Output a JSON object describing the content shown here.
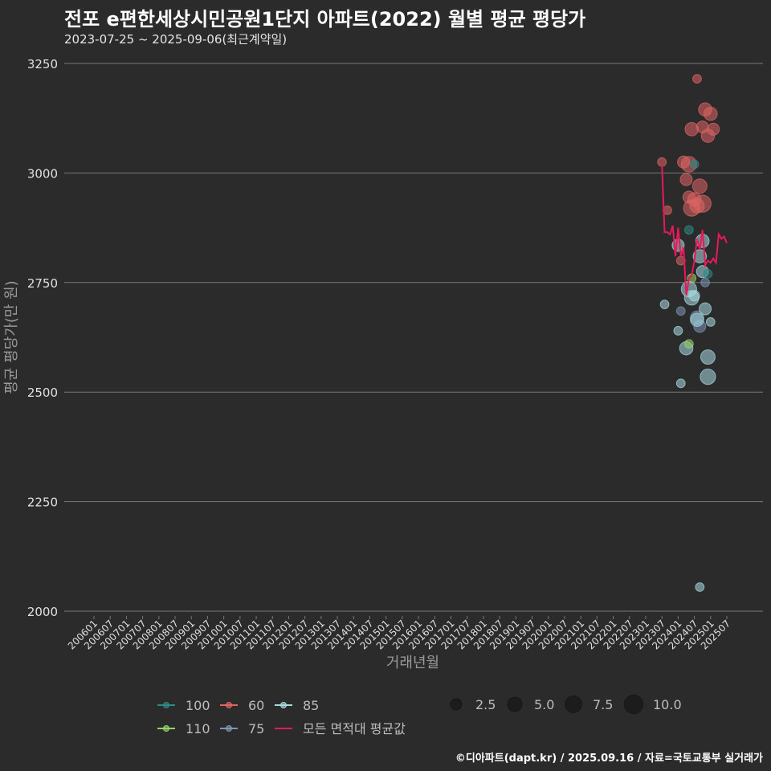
{
  "chart_data": {
    "type": "scatter",
    "title": "전포 e편한세상시민공원1단지 아파트(2022) 월별 평균 평당가",
    "subtitle": "2023-07-25 ~ 2025-09-06(최근계약일)",
    "xlabel": "거래년월",
    "ylabel": "평균 평당가(만 원)",
    "ylim": [
      2000,
      3250
    ],
    "yticks": [
      2000,
      2250,
      2500,
      2750,
      3000,
      3250
    ],
    "xticks": [
      "200601",
      "200607",
      "200701",
      "200707",
      "200801",
      "200807",
      "200901",
      "200907",
      "201001",
      "201007",
      "201101",
      "201107",
      "201201",
      "201207",
      "201301",
      "201307",
      "201401",
      "201407",
      "201501",
      "201507",
      "201601",
      "201607",
      "201701",
      "201707",
      "201801",
      "201807",
      "201901",
      "201907",
      "202001",
      "202007",
      "202101",
      "202107",
      "202201",
      "202207",
      "202301",
      "202307",
      "202401",
      "202407",
      "202501",
      "202507"
    ],
    "series": [
      {
        "name": "60",
        "color": "#e06565",
        "points": [
          {
            "x": "202307",
            "y": 3025,
            "n": 1
          },
          {
            "x": "202309",
            "y": 2915,
            "n": 1
          },
          {
            "x": "202402",
            "y": 2800,
            "n": 1
          },
          {
            "x": "202403",
            "y": 3025,
            "n": 3
          },
          {
            "x": "202404",
            "y": 2985,
            "n": 3
          },
          {
            "x": "202405",
            "y": 3020,
            "n": 6
          },
          {
            "x": "202405",
            "y": 2945,
            "n": 3
          },
          {
            "x": "202406",
            "y": 3100,
            "n": 4
          },
          {
            "x": "202406",
            "y": 2920,
            "n": 7
          },
          {
            "x": "202407",
            "y": 2940,
            "n": 4
          },
          {
            "x": "202408",
            "y": 3215,
            "n": 1
          },
          {
            "x": "202408",
            "y": 2925,
            "n": 5
          },
          {
            "x": "202409",
            "y": 2970,
            "n": 5
          },
          {
            "x": "202410",
            "y": 2930,
            "n": 8
          },
          {
            "x": "202410",
            "y": 3105,
            "n": 3
          },
          {
            "x": "202411",
            "y": 3145,
            "n": 4
          },
          {
            "x": "202412",
            "y": 3085,
            "n": 4
          },
          {
            "x": "202501",
            "y": 3135,
            "n": 4
          },
          {
            "x": "202502",
            "y": 3100,
            "n": 3
          }
        ]
      },
      {
        "name": "75",
        "color": "#7d96b4",
        "points": [
          {
            "x": "202402",
            "y": 2685,
            "n": 1
          },
          {
            "x": "202408",
            "y": 2670,
            "n": 4
          },
          {
            "x": "202409",
            "y": 2650,
            "n": 3
          },
          {
            "x": "202411",
            "y": 2750,
            "n": 1
          }
        ]
      },
      {
        "name": "85",
        "color": "#a8dbe1",
        "points": [
          {
            "x": "202308",
            "y": 2700,
            "n": 1
          },
          {
            "x": "202401",
            "y": 2835,
            "n": 3
          },
          {
            "x": "202401",
            "y": 2640,
            "n": 1
          },
          {
            "x": "202402",
            "y": 2520,
            "n": 1
          },
          {
            "x": "202404",
            "y": 2600,
            "n": 4
          },
          {
            "x": "202405",
            "y": 2735,
            "n": 6
          },
          {
            "x": "202406",
            "y": 2715,
            "n": 5
          },
          {
            "x": "202407",
            "y": 2720,
            "n": 2
          },
          {
            "x": "202408",
            "y": 2665,
            "n": 4
          },
          {
            "x": "202409",
            "y": 2810,
            "n": 4
          },
          {
            "x": "202410",
            "y": 2775,
            "n": 3
          },
          {
            "x": "202410",
            "y": 2845,
            "n": 4
          },
          {
            "x": "202411",
            "y": 2690,
            "n": 3
          },
          {
            "x": "202412",
            "y": 2535,
            "n": 6
          },
          {
            "x": "202412",
            "y": 2580,
            "n": 5
          },
          {
            "x": "202501",
            "y": 2660,
            "n": 1
          },
          {
            "x": "202409",
            "y": 2055,
            "n": 1
          }
        ]
      },
      {
        "name": "100",
        "color": "#2e8b86",
        "points": [
          {
            "x": "202405",
            "y": 2870,
            "n": 1
          },
          {
            "x": "202407",
            "y": 3020,
            "n": 1
          },
          {
            "x": "202412",
            "y": 2770,
            "n": 1
          }
        ]
      },
      {
        "name": "110",
        "color": "#94d466",
        "points": [
          {
            "x": "202405",
            "y": 2610,
            "n": 1
          },
          {
            "x": "202406",
            "y": 2760,
            "n": 1
          }
        ]
      }
    ],
    "avg_line": {
      "name": "모든 면적대 평균값",
      "color": "#e8195a",
      "points": [
        {
          "x": "202307",
          "y": 3020
        },
        {
          "x": "202308",
          "y": 2865
        },
        {
          "x": "202309",
          "y": 2865
        },
        {
          "x": "202310",
          "y": 2860
        },
        {
          "x": "202311",
          "y": 2880
        },
        {
          "x": "202312",
          "y": 2810
        },
        {
          "x": "202401",
          "y": 2875
        },
        {
          "x": "202402",
          "y": 2810
        },
        {
          "x": "202403",
          "y": 2830
        },
        {
          "x": "202404",
          "y": 2720
        },
        {
          "x": "202405",
          "y": 2760
        },
        {
          "x": "202406",
          "y": 2765
        },
        {
          "x": "202407",
          "y": 2800
        },
        {
          "x": "202408",
          "y": 2850
        },
        {
          "x": "202409",
          "y": 2825
        },
        {
          "x": "202410",
          "y": 2870
        },
        {
          "x": "202411",
          "y": 2790
        },
        {
          "x": "202412",
          "y": 2800
        },
        {
          "x": "202501",
          "y": 2795
        },
        {
          "x": "202502",
          "y": 2805
        },
        {
          "x": "202503",
          "y": 2795
        },
        {
          "x": "202504",
          "y": 2860
        },
        {
          "x": "202505",
          "y": 2850
        },
        {
          "x": "202506",
          "y": 2855
        },
        {
          "x": "202507",
          "y": 2840
        }
      ]
    },
    "size_legend": [
      {
        "label": "2.5",
        "value": 2.5
      },
      {
        "label": "5.0",
        "value": 5.0
      },
      {
        "label": "7.5",
        "value": 7.5
      },
      {
        "label": "10.0",
        "value": 10.0
      }
    ]
  },
  "caption": "©디아파트(dapt.kr) / 2025.09.16 / 자료=국토교통부 실거래가"
}
